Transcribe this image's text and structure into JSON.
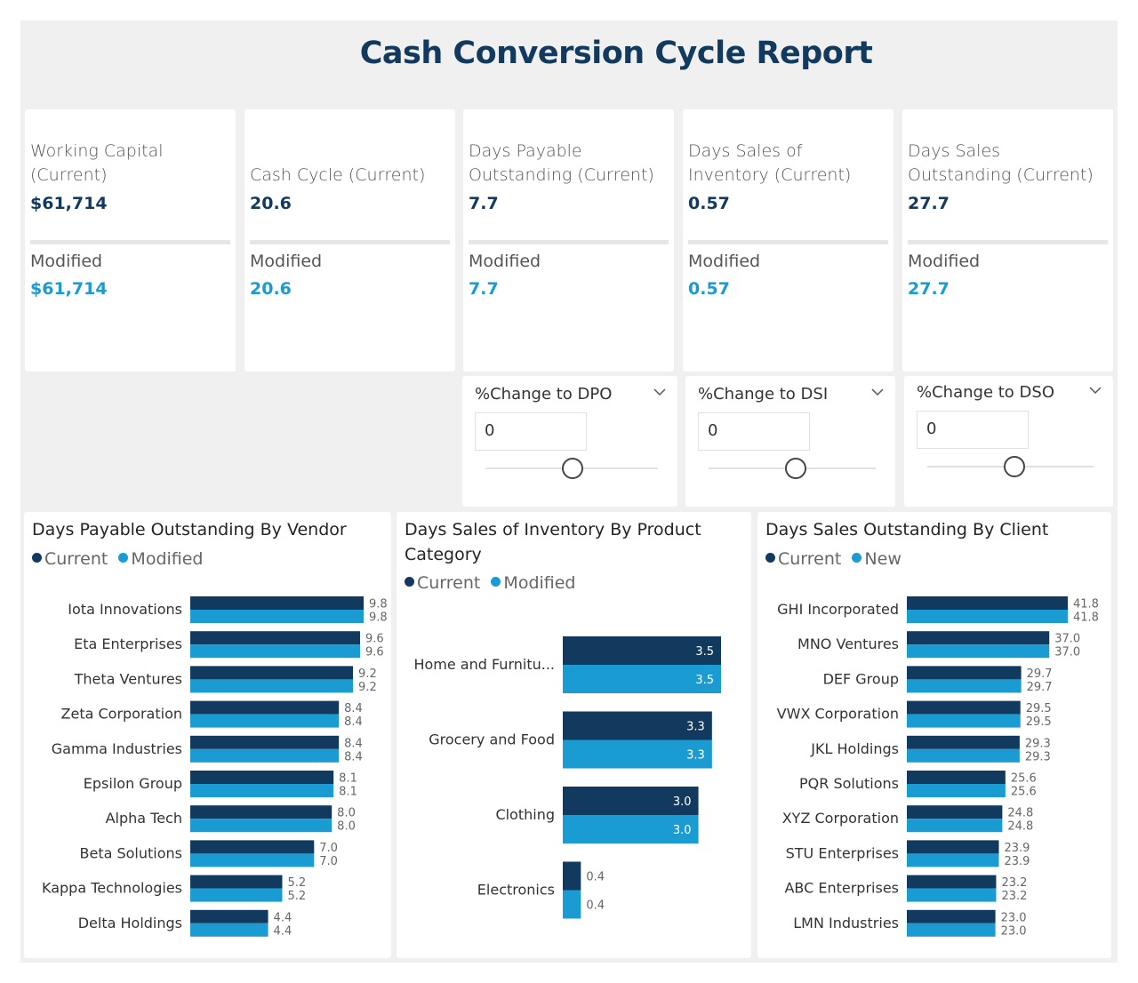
{
  "title": "Cash Conversion Cycle Report",
  "colors": {
    "current": "#123a5e",
    "modified": "#1a9bd1"
  },
  "kpis": [
    {
      "label": "Working Capital (Current)",
      "value": "$61,714",
      "modified_label": "Modified",
      "modified_value": "$61,714"
    },
    {
      "label": "Cash Cycle (Current)",
      "value": "20.6",
      "modified_label": "Modified",
      "modified_value": "20.6"
    },
    {
      "label": "Days Payable Outstanding (Current)",
      "value": "7.7",
      "modified_label": "Modified",
      "modified_value": "7.7"
    },
    {
      "label": "Days Sales of Inventory (Current)",
      "value": "0.57",
      "modified_label": "Modified",
      "modified_value": "0.57"
    },
    {
      "label": "Days Sales Outstanding (Current)",
      "value": "27.7",
      "modified_label": "Modified",
      "modified_value": "27.7"
    }
  ],
  "slicers": [
    {
      "title": "%Change to DPO",
      "value": "0"
    },
    {
      "title": "%Change to DSI",
      "value": "0"
    },
    {
      "title": "%Change to DSO",
      "value": "0"
    }
  ],
  "chart_data": [
    {
      "type": "bar",
      "orientation": "horizontal",
      "title": "Days Payable Outstanding By Vendor",
      "categories": [
        "Iota Innovations",
        "Eta Enterprises",
        "Theta Ventures",
        "Zeta Corporation",
        "Gamma Industries",
        "Epsilon Group",
        "Alpha Tech",
        "Beta Solutions",
        "Kappa Technologies",
        "Delta Holdings"
      ],
      "series": [
        {
          "name": "Current",
          "values": [
            9.8,
            9.6,
            9.2,
            8.4,
            8.4,
            8.1,
            8.0,
            7.0,
            5.2,
            4.4
          ],
          "labels": [
            "9.8",
            "9.6",
            "9.2",
            "8.4",
            "8.4",
            "8.1",
            "8.0",
            "7.0",
            "5.2",
            "4.4"
          ]
        },
        {
          "name": "Modified",
          "values": [
            9.8,
            9.6,
            9.2,
            8.4,
            8.4,
            8.1,
            8.0,
            7.0,
            5.2,
            4.4
          ],
          "labels": [
            "9.8",
            "9.6",
            "9.2",
            "8.4",
            "8.4",
            "8.1",
            "8.0",
            "7.0",
            "5.2",
            "4.4"
          ]
        }
      ],
      "xlim": [
        0,
        9.8
      ],
      "legend": "top-left"
    },
    {
      "type": "bar",
      "orientation": "horizontal",
      "title": "Days Sales of Inventory By Product Category",
      "categories": [
        "Home and Furnitu...",
        "Grocery and Food",
        "Clothing",
        "Electronics"
      ],
      "series": [
        {
          "name": "Current",
          "values": [
            3.5,
            3.3,
            3.0,
            0.4
          ],
          "labels": [
            "3.5",
            "3.3",
            "3.0",
            "0.4"
          ]
        },
        {
          "name": "Modified",
          "values": [
            3.5,
            3.3,
            3.0,
            0.4
          ],
          "labels": [
            "3.5",
            "3.3",
            "3.0",
            "0.4"
          ]
        }
      ],
      "xlim": [
        0,
        3.5
      ],
      "legend": "top-left"
    },
    {
      "type": "bar",
      "orientation": "horizontal",
      "title": "Days Sales Outstanding By Client",
      "categories": [
        "GHI Incorporated",
        "MNO Ventures",
        "DEF Group",
        "VWX Corporation",
        "JKL Holdings",
        "PQR Solutions",
        "XYZ Corporation",
        "STU Enterprises",
        "ABC Enterprises",
        "LMN Industries"
      ],
      "series": [
        {
          "name": "Current",
          "values": [
            41.8,
            37.0,
            29.7,
            29.5,
            29.3,
            25.6,
            24.8,
            23.9,
            23.2,
            23.0
          ],
          "labels": [
            "41.8",
            "37.0",
            "29.7",
            "29.5",
            "29.3",
            "25.6",
            "24.8",
            "23.9",
            "23.2",
            "23.0"
          ]
        },
        {
          "name": "New",
          "values": [
            41.8,
            37.0,
            29.7,
            29.5,
            29.3,
            25.6,
            24.8,
            23.9,
            23.2,
            23.0
          ],
          "labels": [
            "41.8",
            "37.0",
            "29.7",
            "29.5",
            "29.3",
            "25.6",
            "24.8",
            "23.9",
            "23.2",
            "23.0"
          ]
        }
      ],
      "xlim": [
        0,
        41.8
      ],
      "legend": "top-left"
    }
  ]
}
